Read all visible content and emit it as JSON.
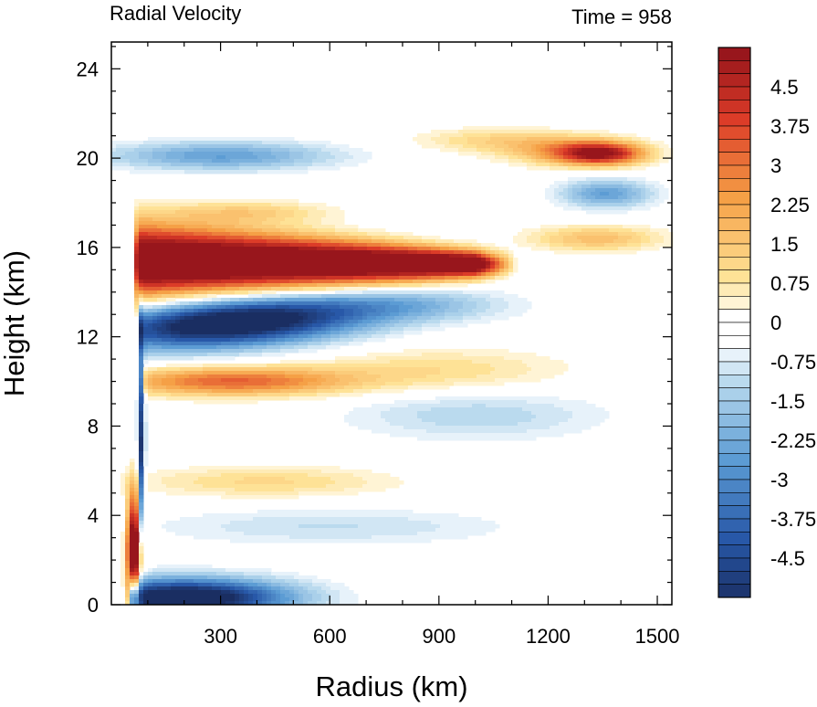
{
  "chart_data": {
    "type": "heatmap",
    "title_left": "Radial Velocity",
    "title_right": "Time = 958",
    "xlabel": "Radius (km)",
    "ylabel": "Height (km)",
    "xlim": [
      0,
      1540
    ],
    "ylim": [
      0,
      25.2
    ],
    "xticks": [
      300,
      600,
      900,
      1200,
      1500
    ],
    "yticks": [
      0,
      4,
      8,
      12,
      16,
      20,
      24
    ],
    "colorbar": {
      "min": -5.25,
      "max": 5.25,
      "step": 0.25,
      "tick_labels": [
        "4.5",
        "3.75",
        "3",
        "2.25",
        "1.5",
        "0.75",
        "0",
        "-0.75",
        "-1.5",
        "-2.25",
        "-3",
        "-3.75",
        "-4.5"
      ],
      "tick_values": [
        4.5,
        3.75,
        3,
        2.25,
        1.5,
        0.75,
        0,
        -0.75,
        -1.5,
        -2.25,
        -3,
        -3.75,
        -4.5
      ]
    },
    "features": [
      {
        "name": "upper outflow jet",
        "sign": "positive",
        "r": [
          70,
          1100
        ],
        "z": [
          14,
          17.2
        ],
        "value": 5.5
      },
      {
        "name": "upper-level inflow",
        "sign": "negative",
        "r": [
          80,
          650
        ],
        "z": [
          11.5,
          13.5
        ],
        "value": -5
      },
      {
        "name": "mid-level outflow",
        "sign": "positive",
        "r": [
          100,
          600
        ],
        "z": [
          9.5,
          10.5
        ],
        "value": 3
      },
      {
        "name": "boundary layer inflow",
        "sign": "negative",
        "r": [
          50,
          520
        ],
        "z": [
          0,
          1.3
        ],
        "value": -5.5
      },
      {
        "name": "eyewall low-level outflow",
        "sign": "positive",
        "r": [
          40,
          85
        ],
        "z": [
          0.5,
          5
        ],
        "value": 5.5
      },
      {
        "name": "tropopause outflow",
        "sign": "positive",
        "r": [
          1200,
          1500
        ],
        "z": [
          19.5,
          21
        ],
        "value": 4
      },
      {
        "name": "upper inflow band",
        "sign": "negative",
        "r": [
          0,
          1000
        ],
        "z": [
          19.5,
          21
        ],
        "value": -2
      }
    ]
  }
}
